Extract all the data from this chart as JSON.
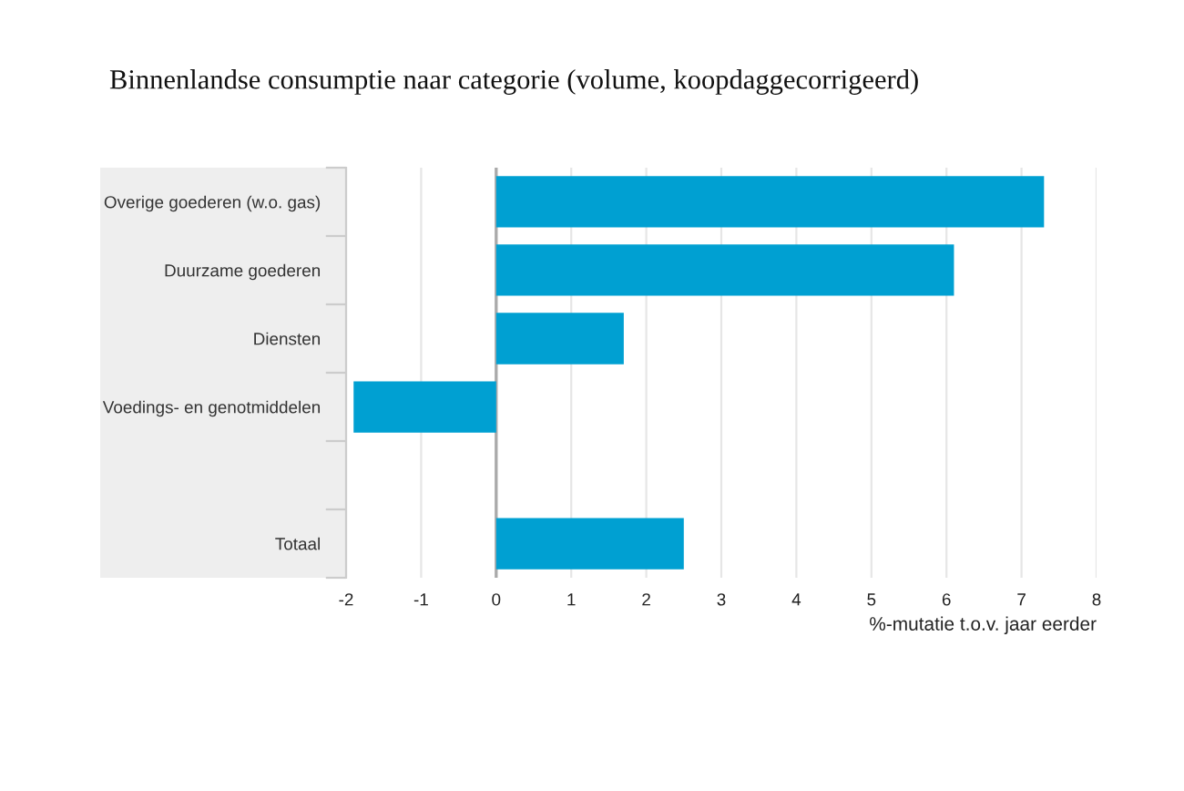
{
  "chart_data": {
    "type": "bar",
    "orientation": "horizontal",
    "title": "Binnenlandse consumptie naar categorie (volume, koopdaggecorrigeerd)",
    "xlabel": "%-mutatie t.o.v. jaar eerder",
    "categories": [
      "Overige goederen (w.o. gas)",
      "Duurzame goederen",
      "Diensten",
      "Voedings- en genotmiddelen",
      null,
      "Totaal"
    ],
    "values": [
      7.3,
      6.1,
      1.7,
      -1.9,
      null,
      2.5
    ],
    "color": "#00a0d2",
    "xlim": [
      -2,
      8
    ],
    "xticks": [
      -2,
      -1,
      0,
      1,
      2,
      3,
      4,
      5,
      6,
      7,
      8
    ],
    "grid": "x",
    "legend": false,
    "ref_lines": [
      {
        "axis": "x",
        "value": 0,
        "color": "#aaaaaa"
      }
    ]
  }
}
